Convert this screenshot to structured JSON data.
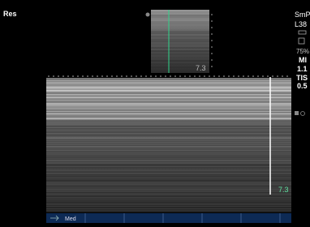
{
  "header": {
    "mode": "Res"
  },
  "side_panel": {
    "preset": "SmP",
    "probe": "L38",
    "power": "75%",
    "mi_label": "MI",
    "mi_value": "1.1",
    "tis_label": "TIS",
    "tis_value": "0.5"
  },
  "image": {
    "depth_top": "7.3",
    "depth_bottom": "7.3"
  },
  "footer": {
    "label": "Med"
  }
}
